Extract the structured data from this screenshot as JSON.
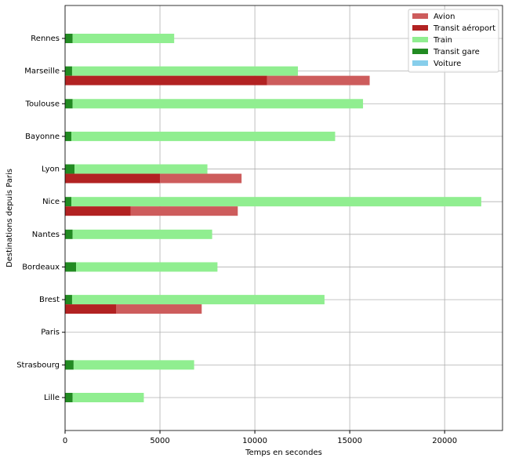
{
  "chart_data": {
    "type": "barh",
    "xlabel": "Temps en secondes",
    "ylabel": "Destinations depuis Paris",
    "categories": [
      "Lille",
      "Strasbourg",
      "Paris",
      "Brest",
      "Bordeaux",
      "Nantes",
      "Nice",
      "Lyon",
      "Bayonne",
      "Toulouse",
      "Marseille",
      "Rennes"
    ],
    "series": [
      {
        "name": "Avion",
        "color": "#cd5c5c",
        "values": [
          null,
          null,
          null,
          4500,
          null,
          null,
          5650,
          4300,
          null,
          null,
          5400,
          null
        ]
      },
      {
        "name": "Transit aéroport",
        "color": "#b22222",
        "values": [
          null,
          null,
          null,
          2700,
          null,
          null,
          3450,
          5000,
          null,
          null,
          10650,
          null
        ]
      },
      {
        "name": "Train",
        "color": "#90ee90",
        "values": [
          3750,
          6350,
          0,
          13300,
          7450,
          7350,
          21600,
          7000,
          13900,
          15300,
          11900,
          5350
        ]
      },
      {
        "name": "Transit gare",
        "color": "#228b22",
        "values": [
          400,
          450,
          0,
          370,
          580,
          400,
          330,
          500,
          330,
          400,
          370,
          400
        ]
      },
      {
        "name": "Voiture",
        "color": "#87ceeb",
        "values": [
          0,
          0,
          0,
          0,
          0,
          0,
          0,
          0,
          0,
          0,
          0,
          0
        ]
      }
    ],
    "xlim": [
      0,
      23050
    ],
    "xticks": [
      0,
      5000,
      10000,
      15000,
      20000
    ],
    "grid": true,
    "legend": "upper right"
  }
}
